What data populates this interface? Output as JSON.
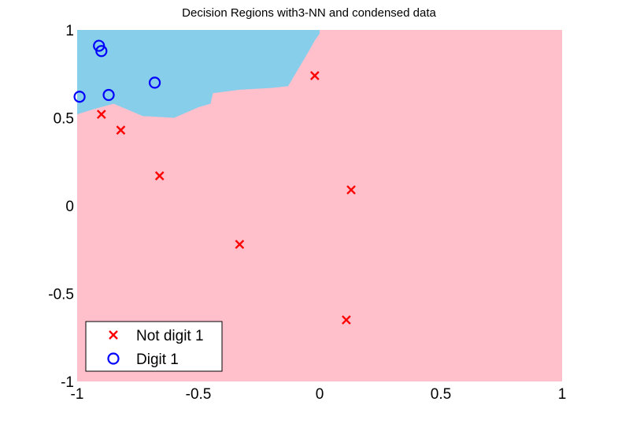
{
  "chart_data": {
    "type": "scatter",
    "title": "Decision Regions with3-NN and condensed data",
    "xlabel": "",
    "ylabel": "",
    "xlim": [
      -1,
      1
    ],
    "ylim": [
      -1,
      1
    ],
    "xticks": [
      -1,
      -0.5,
      0,
      0.5,
      1
    ],
    "xtick_labels": [
      "-1",
      "-0.5",
      "0",
      "0.5",
      "1"
    ],
    "yticks": [
      -1,
      -0.5,
      0,
      0.5,
      1
    ],
    "ytick_labels": [
      "-1",
      "-0.5",
      "0",
      "0.5",
      "1"
    ],
    "grid": false,
    "legend_position": "bottom-left",
    "background_region": {
      "label": "Not digit 1 region",
      "color": "#ffc0cb"
    },
    "region": {
      "label": "Digit 1 region",
      "color": "#87ceeb",
      "boundary": [
        [
          -1.0,
          1.0
        ],
        [
          -1.0,
          0.52
        ],
        [
          -0.93,
          0.55
        ],
        [
          -0.85,
          0.58
        ],
        [
          -0.78,
          0.54
        ],
        [
          -0.73,
          0.51
        ],
        [
          -0.6,
          0.5
        ],
        [
          -0.5,
          0.56
        ],
        [
          -0.45,
          0.58
        ],
        [
          -0.44,
          0.64
        ],
        [
          -0.33,
          0.66
        ],
        [
          -0.2,
          0.67
        ],
        [
          -0.13,
          0.68
        ],
        [
          -0.1,
          0.75
        ],
        [
          -0.07,
          0.82
        ],
        [
          -0.04,
          0.89
        ],
        [
          -0.02,
          0.94
        ],
        [
          0.0,
          0.98
        ],
        [
          0.0,
          1.0
        ]
      ]
    },
    "series": [
      {
        "name": "Not digit 1",
        "marker": "x",
        "color": "#ff0000",
        "points": [
          {
            "x": -0.9,
            "y": 0.52
          },
          {
            "x": -0.82,
            "y": 0.43
          },
          {
            "x": -0.66,
            "y": 0.17
          },
          {
            "x": -0.33,
            "y": -0.22
          },
          {
            "x": -0.02,
            "y": 0.74
          },
          {
            "x": 0.13,
            "y": 0.09
          },
          {
            "x": 0.11,
            "y": -0.65
          }
        ]
      },
      {
        "name": "Digit 1",
        "marker": "o",
        "color": "#0000ff",
        "points": [
          {
            "x": -0.91,
            "y": 0.91
          },
          {
            "x": -0.9,
            "y": 0.88
          },
          {
            "x": -0.99,
            "y": 0.62
          },
          {
            "x": -0.87,
            "y": 0.63
          },
          {
            "x": -0.68,
            "y": 0.7
          }
        ]
      }
    ]
  }
}
